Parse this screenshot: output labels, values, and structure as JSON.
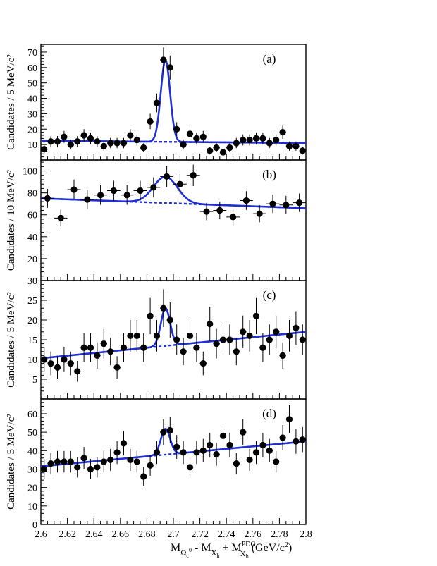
{
  "x_axis_label": "M_{Ω_c^0} - M_{X_h} + M_{X_h}^{PDG} (GeV/c^2)",
  "x_axis_label_parts": {
    "m1": "M",
    "m1_sub": "Ω",
    "m1_subsub": "c",
    "m1_subsup": "0",
    "minus": " - M",
    "m2_sub": "X",
    "m2_subsub": "h",
    "plus": " + M",
    "m3_sup": "PDG",
    "m3_sub": "X",
    "m3_subsub": "h",
    "units": " (GeV/c",
    "units_sup": "2",
    "units_close": ")"
  },
  "chart_data": [
    {
      "type": "scatter",
      "panel": "(a)",
      "ylabel": "Candidates / 5 MeV/c²",
      "xlim": [
        2.6,
        2.8
      ],
      "ylim": [
        0,
        75
      ],
      "yticks": [
        10,
        20,
        30,
        40,
        50,
        60,
        70
      ],
      "xticks": [
        2.6,
        2.62,
        2.64,
        2.66,
        2.68,
        2.7,
        2.72,
        2.74,
        2.76,
        2.78,
        2.8
      ],
      "points": {
        "x": [
          2.6025,
          2.6075,
          2.6125,
          2.6175,
          2.6225,
          2.6275,
          2.6325,
          2.6375,
          2.6425,
          2.6475,
          2.6525,
          2.6575,
          2.6625,
          2.6675,
          2.6725,
          2.6775,
          2.6825,
          2.6875,
          2.6925,
          2.6975,
          2.7025,
          2.7075,
          2.7125,
          2.7175,
          2.7225,
          2.7275,
          2.7325,
          2.7375,
          2.7425,
          2.7475,
          2.7525,
          2.7575,
          2.7625,
          2.7675,
          2.7725,
          2.7775,
          2.7825,
          2.7875,
          2.7925,
          2.7975
        ],
        "y": [
          7,
          12,
          12,
          15,
          10,
          12,
          16,
          14,
          12,
          9,
          11,
          11,
          11,
          16,
          13,
          8,
          25,
          37,
          65,
          60,
          20,
          10,
          17,
          14,
          15,
          6,
          8,
          5,
          8,
          11,
          13,
          13,
          14,
          14,
          11,
          13,
          18,
          9,
          9,
          6
        ]
      },
      "fit": {
        "mean": 2.694,
        "sigma": 0.0035,
        "amplitude": 53,
        "bkg_at_xmin": 12.5,
        "bkg_at_xmax": 11
      }
    },
    {
      "type": "scatter",
      "panel": "(b)",
      "ylabel": "Candidates / 10 MeV/c²",
      "xlim": [
        2.6,
        2.8
      ],
      "ylim": [
        0,
        110
      ],
      "yticks": [
        20,
        40,
        60,
        80,
        100
      ],
      "xticks": [
        2.6,
        2.62,
        2.64,
        2.66,
        2.68,
        2.7,
        2.72,
        2.74,
        2.76,
        2.78,
        2.8
      ],
      "points": {
        "x": [
          2.605,
          2.615,
          2.625,
          2.635,
          2.645,
          2.655,
          2.665,
          2.675,
          2.685,
          2.695,
          2.705,
          2.715,
          2.725,
          2.735,
          2.745,
          2.755,
          2.765,
          2.775,
          2.785,
          2.795
        ],
        "y": [
          75,
          57,
          83,
          74,
          78,
          82,
          78,
          82,
          85,
          95,
          88,
          96,
          63,
          64,
          58,
          73,
          61,
          70,
          69,
          71
        ]
      },
      "fit": {
        "mean": 2.694,
        "sigma": 0.009,
        "amplitude": 24,
        "bkg_at_xmin": 75,
        "bkg_at_xmax": 66
      }
    },
    {
      "type": "scatter",
      "panel": "(c)",
      "ylabel": "Candidates / 5 MeV/c²",
      "xlim": [
        2.6,
        2.8
      ],
      "ylim": [
        0,
        30
      ],
      "yticks": [
        5,
        10,
        15,
        20,
        25,
        30
      ],
      "xticks": [
        2.6,
        2.62,
        2.64,
        2.66,
        2.68,
        2.7,
        2.72,
        2.74,
        2.76,
        2.78,
        2.8
      ],
      "points": {
        "x": [
          2.6025,
          2.6075,
          2.6125,
          2.6175,
          2.6225,
          2.6275,
          2.6325,
          2.6375,
          2.6425,
          2.6475,
          2.6525,
          2.6575,
          2.6625,
          2.6675,
          2.6725,
          2.6775,
          2.6825,
          2.6875,
          2.6925,
          2.6975,
          2.7025,
          2.7075,
          2.7125,
          2.7175,
          2.7225,
          2.7275,
          2.7325,
          2.7375,
          2.7425,
          2.7475,
          2.7525,
          2.7575,
          2.7625,
          2.7675,
          2.7725,
          2.7775,
          2.7825,
          2.7875,
          2.7925,
          2.7975
        ],
        "y": [
          10,
          9,
          8,
          10,
          9,
          7,
          13,
          13,
          11,
          14,
          12,
          8,
          13,
          16,
          16,
          13,
          21,
          16,
          23,
          20,
          15,
          12,
          16,
          13,
          9,
          19,
          14,
          15,
          15,
          12,
          17,
          16,
          21,
          13,
          15,
          17,
          11,
          16,
          18,
          15
        ]
      },
      "fit": {
        "mean": 2.694,
        "sigma": 0.0035,
        "amplitude": 9.5,
        "bkg_at_xmin": 10.3,
        "bkg_at_xmax": 17
      }
    },
    {
      "type": "scatter",
      "panel": "(d)",
      "ylabel": "Candidates / 5 MeV/c²",
      "xlim": [
        2.6,
        2.8
      ],
      "ylim": [
        0,
        68
      ],
      "yticks": [
        0,
        10,
        20,
        30,
        40,
        50,
        60
      ],
      "xticks": [
        2.6,
        2.62,
        2.64,
        2.66,
        2.68,
        2.7,
        2.72,
        2.74,
        2.76,
        2.78,
        2.8
      ],
      "xticklabels": [
        "2.6",
        "2.62",
        "2.64",
        "2.66",
        "2.68",
        "2.7",
        "2.72",
        "2.74",
        "2.76",
        "2.78",
        "2.8"
      ],
      "points": {
        "x": [
          2.6025,
          2.6075,
          2.6125,
          2.6175,
          2.6225,
          2.6275,
          2.6325,
          2.6375,
          2.6425,
          2.6475,
          2.6525,
          2.6575,
          2.6625,
          2.6675,
          2.6725,
          2.6775,
          2.6825,
          2.6875,
          2.6925,
          2.6975,
          2.7025,
          2.7075,
          2.7125,
          2.7175,
          2.7225,
          2.7275,
          2.7325,
          2.7375,
          2.7425,
          2.7475,
          2.7525,
          2.7575,
          2.7625,
          2.7675,
          2.7725,
          2.7775,
          2.7825,
          2.7875,
          2.7925,
          2.7975
        ],
        "y": [
          30,
          33,
          34,
          34,
          34,
          31,
          36,
          30,
          31,
          34,
          35,
          39,
          44,
          35,
          34,
          26,
          32,
          39,
          50,
          51,
          42,
          39,
          31,
          39,
          40,
          43,
          38,
          48,
          43,
          33,
          50,
          35,
          39,
          43,
          40,
          34,
          47,
          57,
          45,
          46
        ]
      },
      "fit": {
        "mean": 2.694,
        "sigma": 0.0035,
        "amplitude": 14,
        "bkg_at_xmin": 31.5,
        "bkg_at_xmax": 45
      }
    }
  ]
}
